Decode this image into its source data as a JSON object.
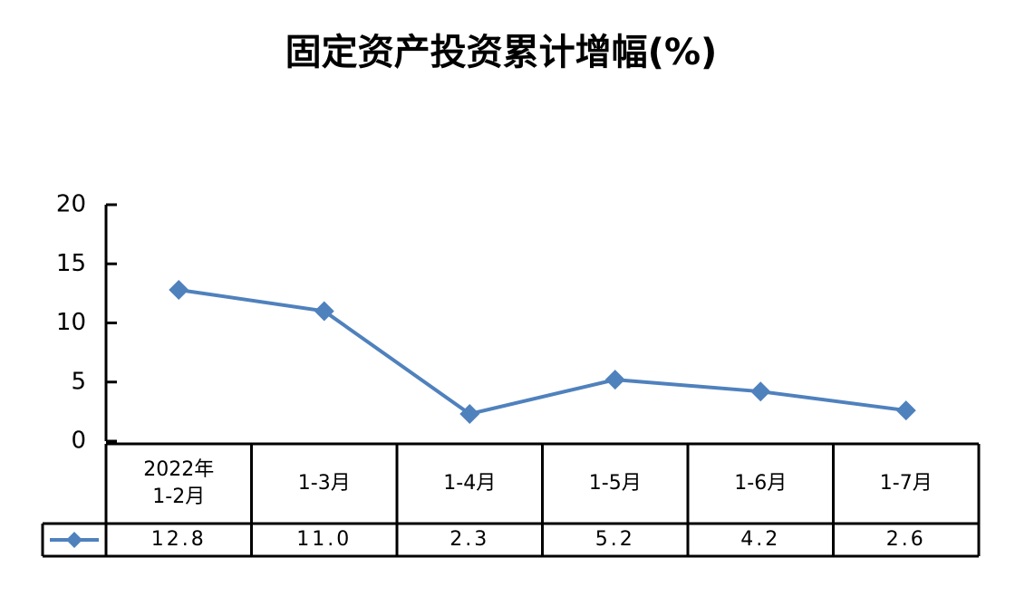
{
  "chart_data": {
    "type": "line",
    "title": "固定资产投资累计增幅(%)",
    "categories": [
      "2022年\n1-2月",
      "1-3月",
      "1-4月",
      "1-5月",
      "1-6月",
      "1-7月"
    ],
    "values": [
      12.8,
      11.0,
      2.3,
      5.2,
      4.2,
      2.6
    ],
    "value_labels": [
      "12.8",
      "11.0",
      "2.3",
      "5.2",
      "4.2",
      "2.6"
    ],
    "color": "#4f81bd",
    "ylim": [
      0,
      20
    ],
    "yticks": [
      0,
      5,
      10,
      15,
      20
    ],
    "grid": false
  }
}
